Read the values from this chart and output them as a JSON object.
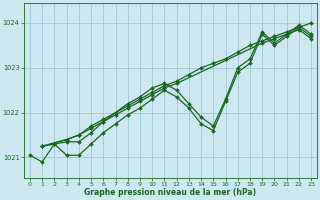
{
  "xlabel": "Graphe pression niveau de la mer (hPa)",
  "background_color": "#cce8f0",
  "grid_color": "#a0c8d8",
  "line_color": "#1a6620",
  "xlim": [
    -0.5,
    23.5
  ],
  "ylim": [
    1020.55,
    1024.45
  ],
  "yticks": [
    1021,
    1022,
    1023,
    1024
  ],
  "xticks": [
    0,
    1,
    2,
    3,
    4,
    5,
    6,
    7,
    8,
    9,
    10,
    11,
    12,
    13,
    14,
    15,
    16,
    17,
    18,
    19,
    20,
    21,
    22,
    23
  ],
  "series": [
    {
      "x": [
        0,
        1,
        2,
        3,
        4,
        5,
        6,
        7,
        8,
        9,
        10,
        11,
        12,
        13,
        14,
        15,
        16,
        17,
        18,
        19,
        20,
        21,
        22,
        23
      ],
      "y": [
        1021.05,
        1020.9,
        1021.3,
        1021.05,
        1021.05,
        1021.3,
        1021.55,
        1021.75,
        1021.95,
        1022.1,
        1022.3,
        1022.5,
        1022.35,
        1022.1,
        1021.75,
        1021.6,
        1022.25,
        1022.9,
        1023.1,
        1023.75,
        1023.5,
        1023.7,
        1023.9,
        1023.7
      ]
    },
    {
      "x": [
        1,
        2,
        3,
        4,
        5,
        6,
        7,
        8,
        9,
        10,
        11,
        12,
        13,
        14,
        15,
        16,
        17,
        18,
        19,
        20,
        21,
        22,
        23
      ],
      "y": [
        1021.25,
        1021.3,
        1021.35,
        1021.35,
        1021.55,
        1021.8,
        1022.0,
        1022.2,
        1022.35,
        1022.55,
        1022.65,
        1022.5,
        1022.2,
        1021.9,
        1021.7,
        1022.3,
        1023.0,
        1023.2,
        1023.8,
        1023.55,
        1023.75,
        1023.95,
        1023.75
      ]
    },
    {
      "x": [
        1,
        3,
        4,
        5,
        6,
        7,
        8,
        9,
        10,
        11,
        12,
        13,
        14,
        15,
        16,
        17,
        18,
        19,
        20,
        21,
        22,
        23
      ],
      "y": [
        1021.25,
        1021.4,
        1021.5,
        1021.7,
        1021.85,
        1022.0,
        1022.15,
        1022.3,
        1022.45,
        1022.6,
        1022.7,
        1022.85,
        1023.0,
        1023.1,
        1023.2,
        1023.35,
        1023.5,
        1023.6,
        1023.7,
        1023.8,
        1023.9,
        1024.0
      ]
    },
    {
      "x": [
        1,
        3,
        4,
        5,
        6,
        7,
        8,
        9,
        10,
        11,
        12,
        19,
        20,
        21,
        22,
        23
      ],
      "y": [
        1021.25,
        1021.4,
        1021.5,
        1021.65,
        1021.8,
        1021.95,
        1022.1,
        1022.25,
        1022.4,
        1022.55,
        1022.65,
        1023.55,
        1023.65,
        1023.75,
        1023.85,
        1023.65
      ]
    }
  ]
}
